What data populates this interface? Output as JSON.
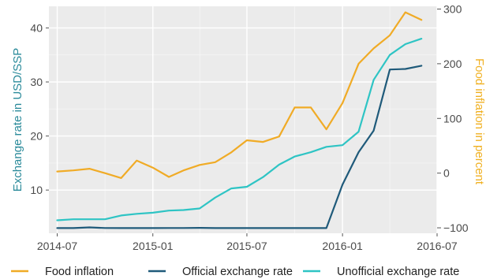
{
  "chart_data": {
    "type": "line",
    "title": "",
    "xlabel": "",
    "x_ticks": [
      "2014-07",
      "2015-01",
      "2015-07",
      "2016-01",
      "2016-07"
    ],
    "x": [
      "2014-07",
      "2014-08",
      "2014-09",
      "2014-10",
      "2014-11",
      "2014-12",
      "2015-01",
      "2015-02",
      "2015-03",
      "2015-04",
      "2015-05",
      "2015-06",
      "2015-07",
      "2015-08",
      "2015-09",
      "2015-10",
      "2015-11",
      "2015-12",
      "2016-01",
      "2016-02",
      "2016-03",
      "2016-04",
      "2016-05",
      "2016-06"
    ],
    "xlim": [
      "2014-06-15",
      "2016-07-01"
    ],
    "y_left": {
      "label": "Exchange rate in USD/SSP",
      "range": [
        2,
        44
      ],
      "ticks": [
        10,
        20,
        30,
        40
      ],
      "color": "#2a8a9a"
    },
    "y_right": {
      "label": "Food inflation in percent",
      "range": [
        -110,
        305
      ],
      "ticks": [
        -100,
        0,
        100,
        200,
        300
      ],
      "color": "#f0b020"
    },
    "grid": true,
    "legend_position": "bottom",
    "series": [
      {
        "name": "Food inflation",
        "axis": "right",
        "color": "#f0ab26",
        "values": [
          3,
          5,
          8,
          0,
          -9,
          23,
          10,
          -7,
          5,
          15,
          20,
          38,
          60,
          57,
          67,
          120,
          120,
          80,
          128,
          200,
          228,
          252,
          294,
          280
        ]
      },
      {
        "name": "Official exchange rate",
        "axis": "left",
        "color": "#1f5a7a",
        "values": [
          2.96,
          2.96,
          3.1,
          2.98,
          2.96,
          2.96,
          2.96,
          2.98,
          2.98,
          3.0,
          2.96,
          2.96,
          2.96,
          2.96,
          2.96,
          2.96,
          2.96,
          2.96,
          11.0,
          17.0,
          21.0,
          32.3,
          32.4,
          33.0
        ]
      },
      {
        "name": "Unofficial exchange rate",
        "axis": "left",
        "color": "#2ec4c4",
        "values": [
          4.4,
          4.6,
          4.6,
          4.6,
          5.3,
          5.6,
          5.8,
          6.2,
          6.3,
          6.6,
          8.6,
          10.3,
          10.6,
          12.4,
          14.7,
          16.2,
          17.0,
          18.0,
          18.3,
          20.8,
          30.4,
          35.0,
          37.0,
          38.0
        ]
      }
    ]
  }
}
